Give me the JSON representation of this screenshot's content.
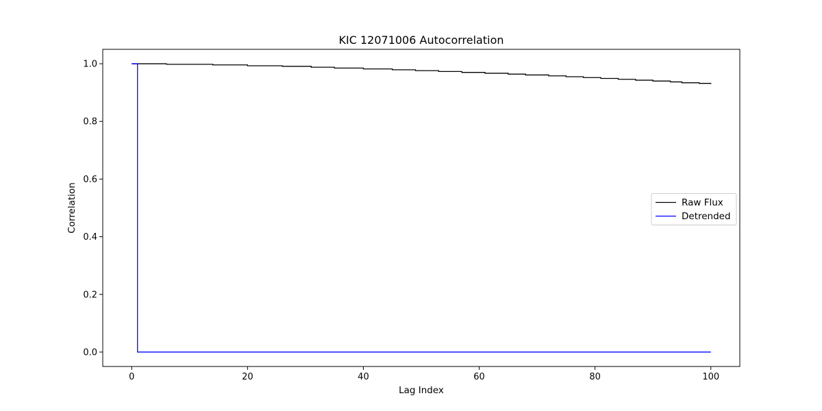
{
  "chart_data": {
    "type": "line",
    "title": "KIC 12071006 Autocorrelation",
    "xlabel": "Lag Index",
    "ylabel": "Correlation",
    "xlim": [
      -5,
      105
    ],
    "ylim": [
      -0.05,
      1.05
    ],
    "xticks": [
      0,
      20,
      40,
      60,
      80,
      100
    ],
    "yticks": [
      0.0,
      0.2,
      0.4,
      0.6,
      0.8,
      1.0
    ],
    "xtick_labels": [
      "0",
      "20",
      "40",
      "60",
      "80",
      "100"
    ],
    "ytick_labels": [
      "0.0",
      "0.2",
      "0.4",
      "0.6",
      "0.8",
      "1.0"
    ],
    "grid": false,
    "legend_position": "center-right",
    "step": true,
    "series": [
      {
        "name": "Raw Flux",
        "color": "#000000",
        "x": [
          0,
          6,
          14,
          20,
          26,
          31,
          35,
          40,
          45,
          49,
          53,
          57,
          61,
          65,
          68,
          72,
          75,
          78,
          81,
          84,
          87,
          90,
          93,
          95,
          98,
          100
        ],
        "y": [
          1.0,
          0.998,
          0.996,
          0.993,
          0.991,
          0.988,
          0.985,
          0.982,
          0.979,
          0.976,
          0.973,
          0.97,
          0.967,
          0.964,
          0.961,
          0.958,
          0.955,
          0.952,
          0.949,
          0.946,
          0.943,
          0.94,
          0.937,
          0.934,
          0.932,
          0.93
        ]
      },
      {
        "name": "Detrended",
        "color": "#0000ff",
        "x": [
          0,
          1,
          100
        ],
        "y": [
          1.0,
          0.0,
          0.0
        ]
      }
    ]
  }
}
